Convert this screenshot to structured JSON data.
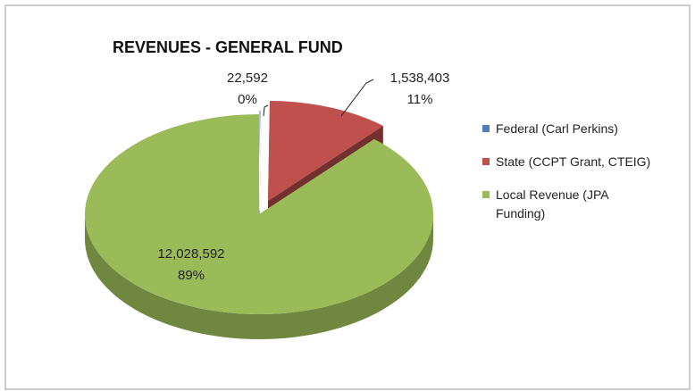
{
  "chart_data": {
    "type": "pie",
    "title": "REVENUES - GENERAL FUND",
    "categories": [
      "Federal (Carl Perkins)",
      "State (CCPT Grant, CTEIG)",
      "Local Revenue (JPA Funding)"
    ],
    "values": [
      22592,
      1538403,
      12028592
    ],
    "value_labels": [
      "22,592",
      "1,538,403",
      "12,028,592"
    ],
    "percent_labels": [
      "0%",
      "11%",
      "89%"
    ],
    "colors": [
      "#4f81bd",
      "#c0504d",
      "#9bbb59"
    ]
  }
}
